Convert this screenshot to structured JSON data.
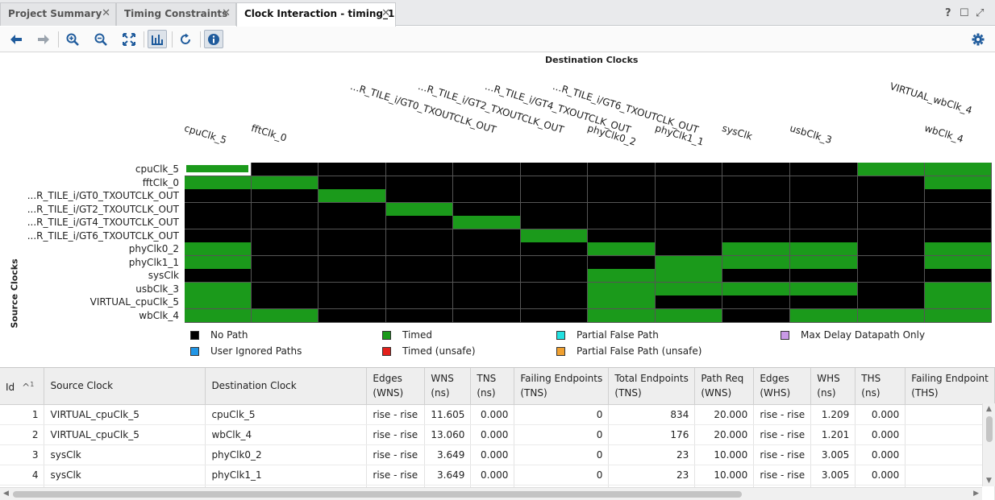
{
  "tabs": [
    {
      "label": "Project Summary",
      "active": false
    },
    {
      "label": "Timing Constraints",
      "active": false
    },
    {
      "label": "Clock Interaction - timing_1",
      "active": true
    }
  ],
  "tab_close_glyph": "✕",
  "window_controls": [
    "?",
    "☐",
    "⤢"
  ],
  "toolbar_icons": [
    "back-icon",
    "forward-icon",
    "zoom-in-icon",
    "zoom-out-icon",
    "fit-icon",
    "chart-toggle-icon",
    "refresh-icon",
    "info-icon",
    "gear-icon"
  ],
  "chart": {
    "dest_title": "Destination Clocks",
    "src_title": "Source Clocks",
    "columns": [
      "cpuClk_5",
      "fftClk_0",
      "...R_TILE_i/GT0_TXOUTCLK_OUT",
      "...R_TILE_i/GT2_TXOUTCLK_OUT",
      "...R_TILE_i/GT4_TXOUTCLK_OUT",
      "...R_TILE_i/GT6_TXOUTCLK_OUT",
      "phyClk0_2",
      "phyClk1_1",
      "sysClk",
      "usbClk_3",
      "VIRTUAL_wbClk_4",
      "wbClk_4"
    ],
    "rows": [
      "cpuClk_5",
      "fftClk_0",
      "...R_TILE_i/GT0_TXOUTCLK_OUT",
      "...R_TILE_i/GT2_TXOUTCLK_OUT",
      "...R_TILE_i/GT4_TXOUTCLK_OUT",
      "...R_TILE_i/GT6_TXOUTCLK_OUT",
      "phyClk0_2",
      "phyClk1_1",
      "sysClk",
      "usbClk_3",
      "VIRTUAL_cpuClk_5",
      "wbClk_4"
    ],
    "matrix": [
      "GN________GG",
      "GG________NG",
      "__G_________",
      "___G________",
      "____G_______",
      "_____G______",
      "G_____G_GGNG",
      "G______GGGNG",
      "______GG____",
      "G_____GGGG_G",
      "G_____G____G",
      "GG____GGNGGG"
    ],
    "selected_cell": [
      0,
      0
    ],
    "colors": {
      "no_path": "#000000",
      "timed": "#1b9a1b",
      "selected_bg": "#ffffff",
      "grid_line": "#555555"
    }
  },
  "legend": [
    {
      "label": "No Path",
      "color": "#000000"
    },
    {
      "label": "Timed",
      "color": "#1b9a1b"
    },
    {
      "label": "Partial False Path",
      "color": "#22e1e1"
    },
    {
      "label": "Max Delay Datapath Only",
      "color": "#c99ae6"
    },
    {
      "label": "User Ignored Paths",
      "color": "#2196e6"
    },
    {
      "label": "Timed (unsafe)",
      "color": "#e3201b"
    },
    {
      "label": "Partial False Path (unsafe)",
      "color": "#f0a030"
    }
  ],
  "table": {
    "sort_indicator": "^",
    "sort_rank": "1",
    "headers": [
      [
        "Id"
      ],
      [
        "Source Clock"
      ],
      [
        "Destination Clock"
      ],
      [
        "Edges",
        "(WNS)"
      ],
      [
        "WNS",
        "(ns)"
      ],
      [
        "TNS",
        "(ns)"
      ],
      [
        "Failing Endpoints",
        "(TNS)"
      ],
      [
        "Total Endpoints",
        "(TNS)"
      ],
      [
        "Path Req",
        "(WNS)"
      ],
      [
        "Edges",
        "(WHS)"
      ],
      [
        "WHS",
        "(ns)"
      ],
      [
        "THS",
        "(ns)"
      ],
      [
        "Failing Endpoint",
        "(THS)"
      ]
    ],
    "rows": [
      [
        "1",
        "VIRTUAL_cpuClk_5",
        "cpuClk_5",
        "rise - rise",
        "11.605",
        "0.000",
        "0",
        "834",
        "20.000",
        "rise - rise",
        "1.209",
        "0.000",
        ""
      ],
      [
        "2",
        "VIRTUAL_cpuClk_5",
        "wbClk_4",
        "rise - rise",
        "13.060",
        "0.000",
        "0",
        "176",
        "20.000",
        "rise - rise",
        "1.201",
        "0.000",
        ""
      ],
      [
        "3",
        "sysClk",
        "phyClk0_2",
        "rise - rise",
        "3.649",
        "0.000",
        "0",
        "23",
        "10.000",
        "rise - rise",
        "3.005",
        "0.000",
        ""
      ],
      [
        "4",
        "sysClk",
        "phyClk1_1",
        "rise - rise",
        "3.649",
        "0.000",
        "0",
        "23",
        "10.000",
        "rise - rise",
        "3.005",
        "0.000",
        ""
      ],
      [
        "",
        "",
        "",
        "",
        "",
        "",
        "",
        "",
        "",
        "",
        "",
        "",
        ""
      ]
    ]
  }
}
